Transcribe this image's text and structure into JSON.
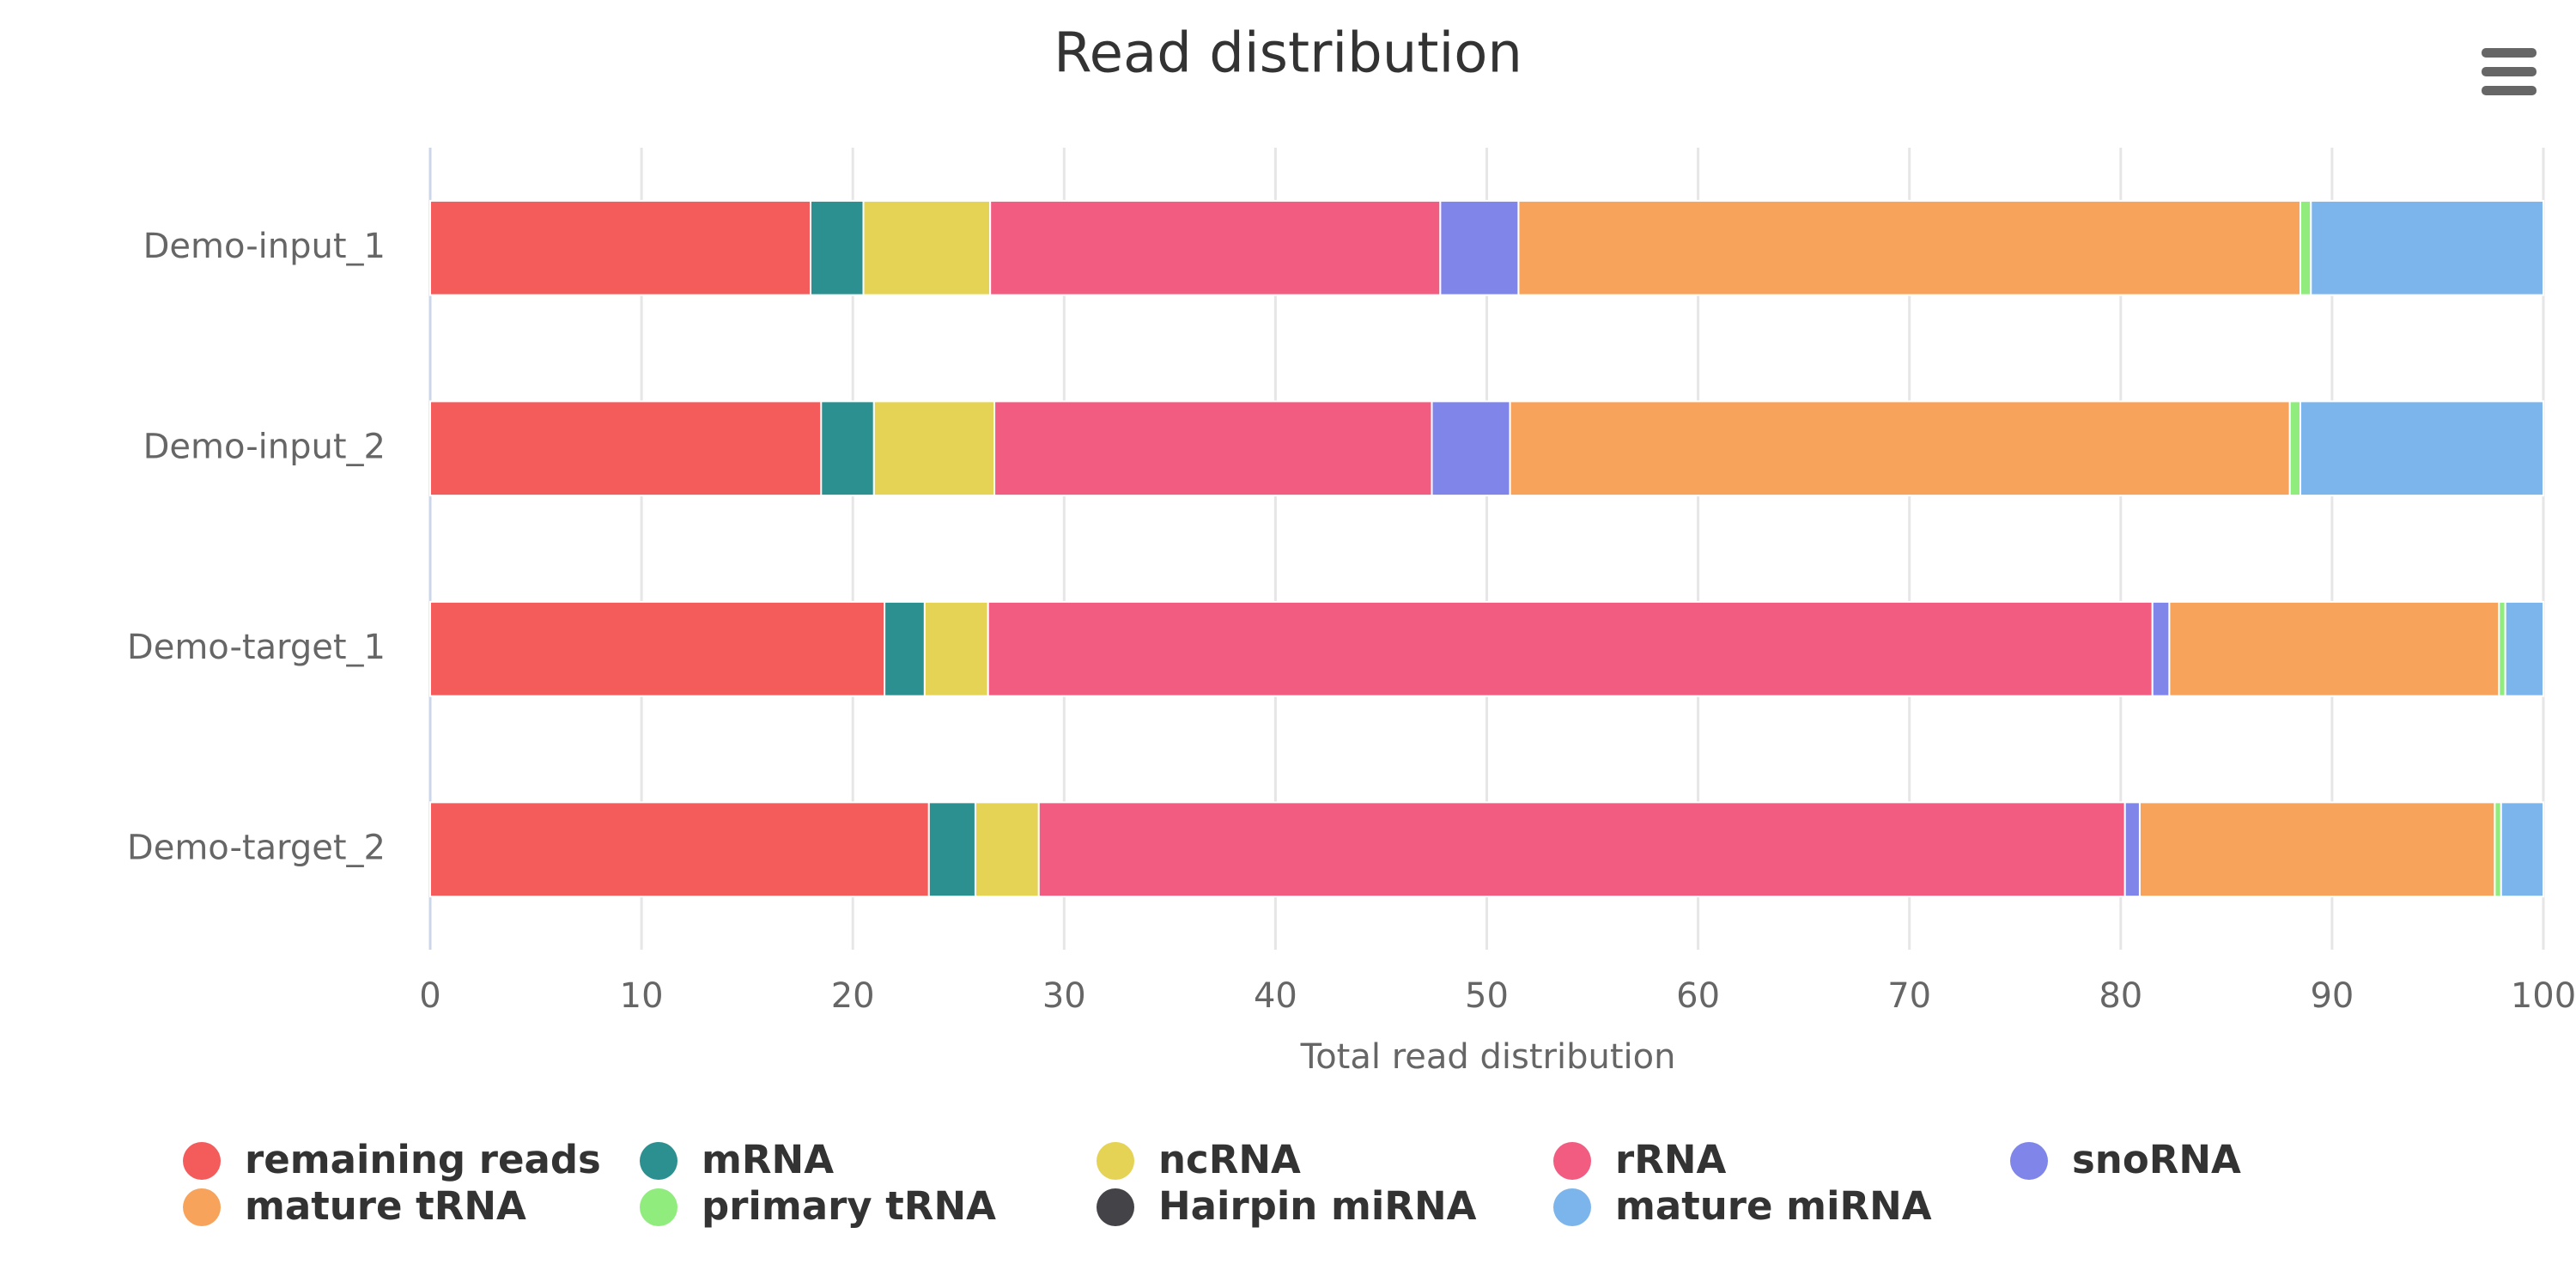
{
  "chart_data": {
    "type": "stacked-bar-horizontal",
    "title": "Read distribution",
    "x_label": "Total read distribution",
    "categories": [
      "Demo-input_1",
      "Demo-input_2",
      "Demo-target_1",
      "Demo-target_2"
    ],
    "series": [
      {
        "name": "remaining reads",
        "color": "#f45b5b",
        "values": [
          18.0,
          18.5,
          21.5,
          23.6
        ]
      },
      {
        "name": "mRNA",
        "color": "#2b908f",
        "values": [
          2.5,
          2.5,
          1.9,
          2.2
        ]
      },
      {
        "name": "ncRNA",
        "color": "#e4d354",
        "values": [
          6.0,
          5.7,
          3.0,
          3.0
        ]
      },
      {
        "name": "rRNA",
        "color": "#f15c80",
        "values": [
          21.3,
          20.7,
          55.1,
          51.4
        ]
      },
      {
        "name": "snoRNA",
        "color": "#8085e9",
        "values": [
          3.7,
          3.7,
          0.8,
          0.7
        ]
      },
      {
        "name": "mature tRNA",
        "color": "#f7a35c",
        "values": [
          37.0,
          36.9,
          15.6,
          16.8
        ]
      },
      {
        "name": "primary tRNA",
        "color": "#90ed7d",
        "values": [
          0.5,
          0.5,
          0.3,
          0.3
        ]
      },
      {
        "name": "Hairpin miRNA",
        "color": "#434348",
        "values": [
          0,
          0,
          0,
          0
        ]
      },
      {
        "name": "mature miRNA",
        "color": "#7cb5ec",
        "values": [
          11.0,
          11.5,
          1.8,
          2.0
        ]
      }
    ],
    "xlim": [
      0,
      100
    ],
    "xticks": [
      0,
      10,
      20,
      30,
      40,
      50,
      60,
      70,
      80,
      90,
      100
    ],
    "grid": true
  }
}
